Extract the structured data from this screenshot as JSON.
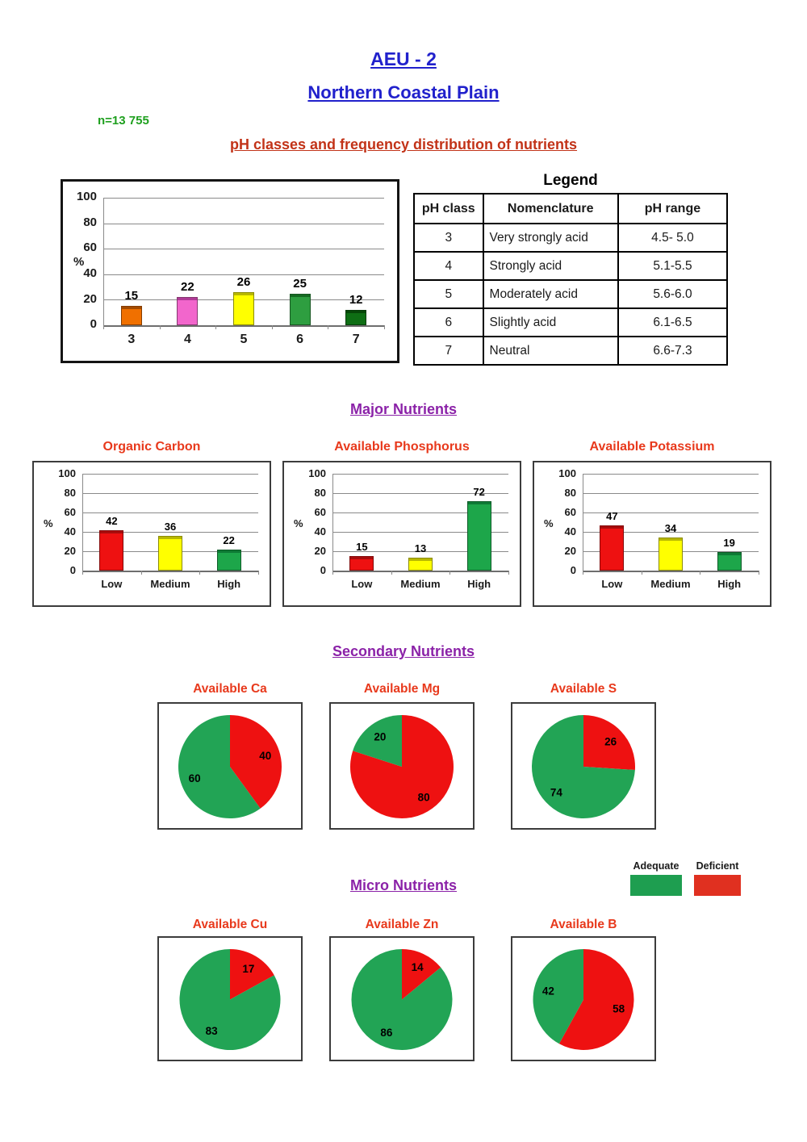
{
  "page": {
    "title": "AEU - 2",
    "subtitle": "Northern Coastal Plain",
    "sample_size": "n=13 755",
    "ph_section_heading": "pH classes and frequency distribution of nutrients",
    "major_heading": "Major Nutrients",
    "secondary_heading": "Secondary Nutrients",
    "micro_heading": "Micro Nutrients"
  },
  "colors": {
    "title_blue": "#2121cc",
    "sample_green": "#1fa01f",
    "section_red": "#c23318",
    "chart_title_red": "#e8391c",
    "heading_purple": "#8b22a8",
    "adequate_green": "#1e9e50",
    "deficient_red": "#e03020"
  },
  "legend_table": {
    "title": "Legend",
    "headers": [
      "pH class",
      "Nomenclature",
      "pH range"
    ],
    "rows": [
      [
        "3",
        "Very strongly acid",
        "4.5- 5.0"
      ],
      [
        "4",
        "Strongly acid",
        "5.1-5.5"
      ],
      [
        "5",
        "Moderately acid",
        "5.6-6.0"
      ],
      [
        "6",
        "Slightly acid",
        "6.1-6.5"
      ],
      [
        "7",
        "Neutral",
        "6.6-7.3"
      ]
    ]
  },
  "pie_legend": [
    {
      "label": "Adequate",
      "color": "#1e9e50"
    },
    {
      "label": "Deficient",
      "color": "#e03020"
    }
  ],
  "chart_data": [
    {
      "type": "bar",
      "id": "ph-class-distribution",
      "title": "",
      "categories": [
        "3",
        "4",
        "5",
        "6",
        "7"
      ],
      "values": [
        15,
        22,
        26,
        25,
        12
      ],
      "bar_colors": [
        "#f07000",
        "#f266cc",
        "#ffff00",
        "#2e9e40",
        "#0e6e14"
      ],
      "bar_cap_colors": [
        "#a34a00",
        "#b03a96",
        "#b8b800",
        "#156a22",
        "#064708"
      ],
      "ylabel": "%",
      "ylim": [
        0,
        100
      ],
      "ytick_step": 20,
      "grid": true
    },
    {
      "type": "bar",
      "id": "organic-carbon",
      "title": "Organic Carbon",
      "categories": [
        "Low",
        "Medium",
        "High"
      ],
      "values": [
        42,
        36,
        22
      ],
      "bar_colors": [
        "#ee1111",
        "#ffff00",
        "#1da64a"
      ],
      "bar_cap_colors": [
        "#a80c0c",
        "#b8b800",
        "#0e7a35"
      ],
      "ylabel": "%",
      "ylim": [
        0,
        100
      ],
      "ytick_step": 20,
      "grid": true
    },
    {
      "type": "bar",
      "id": "available-phosphorus",
      "title": "Available Phosphorus",
      "categories": [
        "Low",
        "Medium",
        "High"
      ],
      "values": [
        15,
        13,
        72
      ],
      "bar_colors": [
        "#ee1111",
        "#ffff00",
        "#1da64a"
      ],
      "bar_cap_colors": [
        "#a80c0c",
        "#b8b800",
        "#0e7a35"
      ],
      "ylabel": "%",
      "ylim": [
        0,
        100
      ],
      "ytick_step": 20,
      "grid": true
    },
    {
      "type": "bar",
      "id": "available-potassium",
      "title": "Available Potassium",
      "categories": [
        "Low",
        "Medium",
        "High"
      ],
      "values": [
        47,
        34,
        19
      ],
      "bar_colors": [
        "#ee1111",
        "#ffff00",
        "#1da64a"
      ],
      "bar_cap_colors": [
        "#a80c0c",
        "#b8b800",
        "#0e7a35"
      ],
      "ylabel": "%",
      "ylim": [
        0,
        100
      ],
      "ytick_step": 20,
      "grid": true
    },
    {
      "type": "pie",
      "id": "available-ca",
      "title": "Available Ca",
      "slices": [
        {
          "label": "Deficient",
          "value": 40,
          "color": "#ee1111"
        },
        {
          "label": "Adequate",
          "value": 60,
          "color": "#22a455"
        }
      ]
    },
    {
      "type": "pie",
      "id": "available-mg",
      "title": "Available Mg",
      "slices": [
        {
          "label": "Deficient",
          "value": 80,
          "color": "#ee1111"
        },
        {
          "label": "Adequate",
          "value": 20,
          "color": "#22a455"
        }
      ]
    },
    {
      "type": "pie",
      "id": "available-s",
      "title": "Available S",
      "slices": [
        {
          "label": "Deficient",
          "value": 26,
          "color": "#ee1111"
        },
        {
          "label": "Adequate",
          "value": 74,
          "color": "#22a455"
        }
      ]
    },
    {
      "type": "pie",
      "id": "available-cu",
      "title": "Available Cu",
      "slices": [
        {
          "label": "Deficient",
          "value": 17,
          "color": "#ee1111"
        },
        {
          "label": "Adequate",
          "value": 83,
          "color": "#22a455"
        }
      ]
    },
    {
      "type": "pie",
      "id": "available-zn",
      "title": "Available Zn",
      "slices": [
        {
          "label": "Deficient",
          "value": 14,
          "color": "#ee1111"
        },
        {
          "label": "Adequate",
          "value": 86,
          "color": "#22a455"
        }
      ]
    },
    {
      "type": "pie",
      "id": "available-b",
      "title": "Available B",
      "slices": [
        {
          "label": "Deficient",
          "value": 58,
          "color": "#ee1111"
        },
        {
          "label": "Adequate",
          "value": 42,
          "color": "#22a455"
        }
      ]
    }
  ]
}
